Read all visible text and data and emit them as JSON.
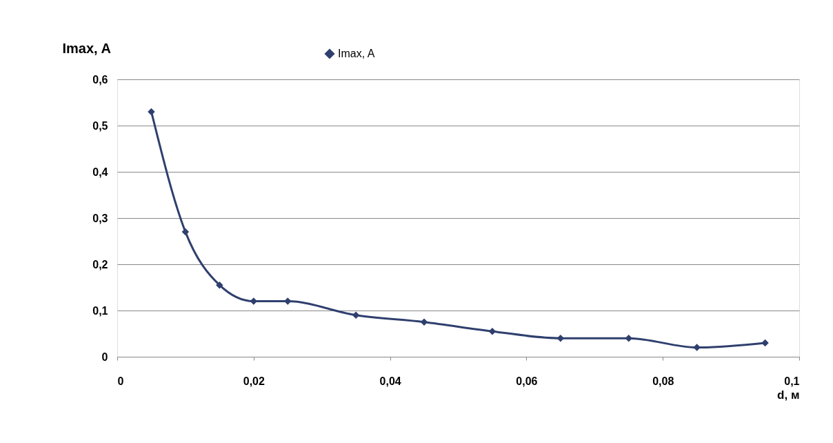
{
  "chart_data": {
    "type": "line",
    "ylabel": "Imax, A",
    "xlabel": "d, м",
    "x": [
      0.005,
      0.01,
      0.015,
      0.02,
      0.025,
      0.035,
      0.045,
      0.055,
      0.065,
      0.075,
      0.085,
      0.095
    ],
    "series": [
      {
        "name": "Imax, A",
        "color": "#2f3f6e",
        "values": [
          0.53,
          0.27,
          0.155,
          0.12,
          0.12,
          0.09,
          0.075,
          0.055,
          0.04,
          0.04,
          0.02,
          0.03
        ]
      }
    ],
    "xlim": [
      0,
      0.1
    ],
    "ylim": [
      0,
      0.6
    ],
    "xticks": [
      0,
      {
        "value": 0.02,
        "label": "0,02"
      },
      {
        "value": 0.04,
        "label": "0,04"
      },
      {
        "value": 0.06,
        "label": "0,06"
      },
      {
        "value": 0.08,
        "label": "0,08"
      },
      {
        "value": 0.1,
        "label": "0,1"
      }
    ],
    "yticks": [
      0,
      {
        "value": 0.1,
        "label": "0,1"
      },
      {
        "value": 0.2,
        "label": "0,2"
      },
      {
        "value": 0.3,
        "label": "0,3"
      },
      {
        "value": 0.4,
        "label": "0,4"
      },
      {
        "value": 0.5,
        "label": "0,5"
      },
      {
        "value": 0.6,
        "label": "0,6"
      }
    ],
    "grid": "y",
    "legend": "top",
    "marker": "diamond",
    "line_style": "solid"
  }
}
